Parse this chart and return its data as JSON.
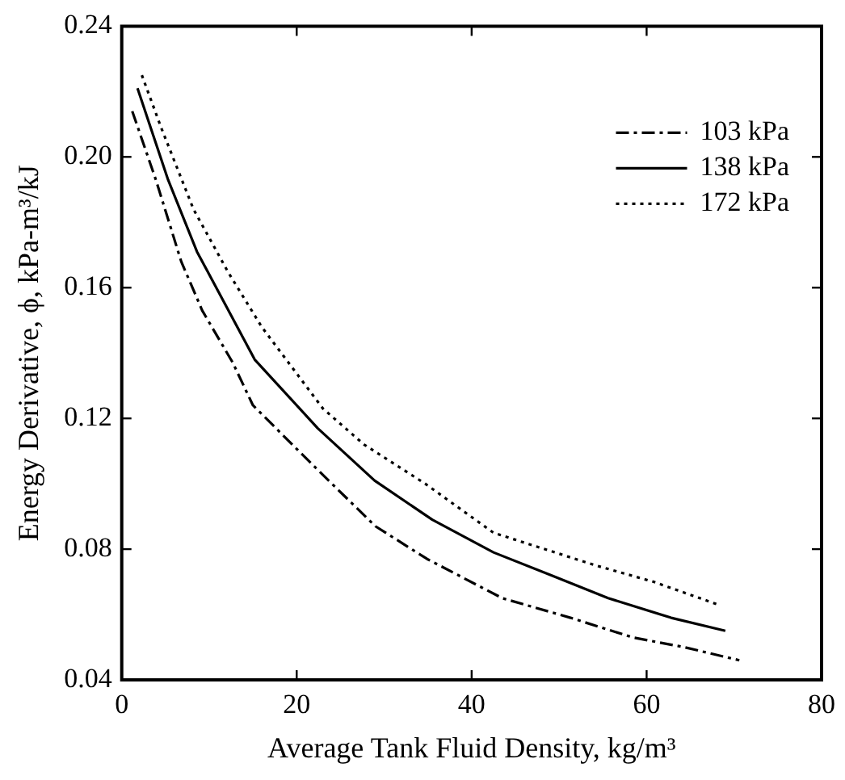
{
  "chart_data": {
    "type": "line",
    "xlabel": "Average Tank Fluid Density, kg/m³",
    "ylabel": "Energy Derivative, ϕ, kPa-m³/kJ",
    "xlim": [
      0,
      80
    ],
    "xticks": [
      0,
      20,
      40,
      60,
      80
    ],
    "ylim": [
      0.04,
      0.24
    ],
    "yticks": [
      0.04,
      0.08,
      0.12,
      0.16,
      {
        "value": 0.2,
        "label": "0.20"
      },
      0.24
    ],
    "grid": false,
    "legend": "top right",
    "marker": "none",
    "series": [
      {
        "name": "103 kPa",
        "color": "#000000",
        "line_style": "dashdot",
        "x": [
          1.2,
          3.9,
          6.8,
          9.2,
          12.7,
          15,
          22.5,
          29,
          34.9,
          43.5,
          51.3,
          58.4,
          64.3,
          70.6
        ],
        "values": [
          0.214,
          0.193,
          0.168,
          0.153,
          0.137,
          0.124,
          0.104,
          0.087,
          0.077,
          0.065,
          0.059,
          0.053,
          0.05,
          0.046
        ]
      },
      {
        "name": "138 kPa",
        "color": "#000000",
        "line_style": "solid",
        "x": [
          1.8,
          5.3,
          8.6,
          15.2,
          22.4,
          28.9,
          35.5,
          42.5,
          49.1,
          55.6,
          62.8,
          69
        ],
        "values": [
          0.221,
          0.193,
          0.171,
          0.138,
          0.117,
          0.101,
          0.089,
          0.079,
          0.072,
          0.065,
          0.059,
          0.055
        ]
      },
      {
        "name": "172 kPa",
        "color": "#000000",
        "line_style": "dotted",
        "x": [
          2.3,
          4.5,
          8.2,
          12.1,
          16,
          23,
          27.7,
          34.7,
          42.5,
          54.2,
          60.8,
          68.2
        ],
        "values": [
          0.225,
          0.209,
          0.184,
          0.165,
          0.148,
          0.123,
          0.112,
          0.1,
          0.085,
          0.075,
          0.07,
          0.063
        ]
      }
    ]
  }
}
